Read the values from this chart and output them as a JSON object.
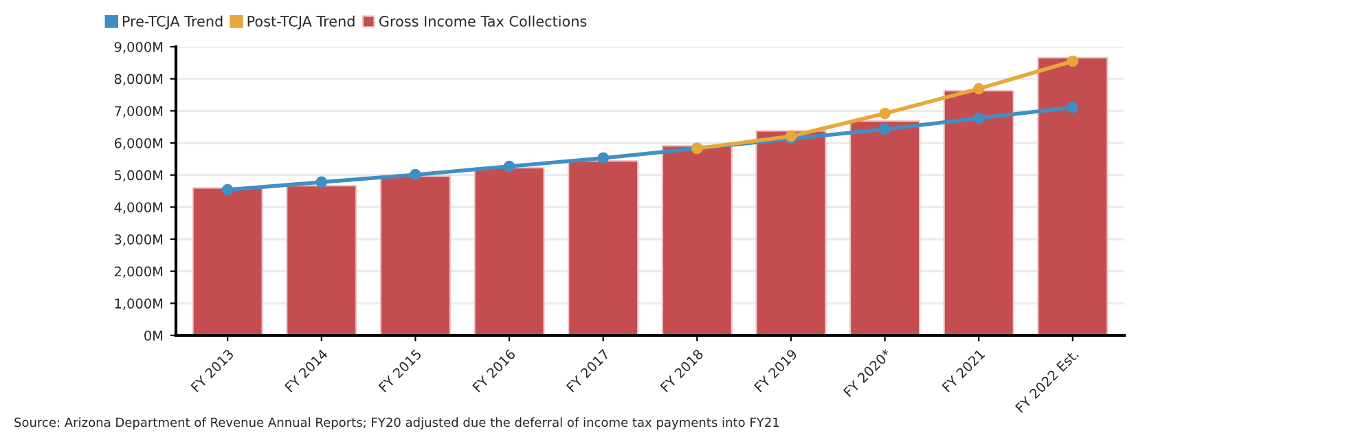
{
  "chart_data": {
    "type": "bar",
    "categories": [
      "FY 2013",
      "FY 2014",
      "FY 2015",
      "FY 2016",
      "FY 2017",
      "FY 2018",
      "FY 2019",
      "FY 2020*",
      "FY 2021",
      "FY 2022 Est."
    ],
    "series": [
      {
        "name": "Pre-TCJA Trend",
        "type": "line",
        "color": "#3f8fc5",
        "values": [
          4540,
          4780,
          5010,
          5270,
          5530,
          5830,
          6130,
          6430,
          6770,
          7110
        ]
      },
      {
        "name": "Post-TCJA Trend",
        "type": "line",
        "color": "#e9a73b",
        "values": [
          null,
          null,
          null,
          null,
          null,
          5830,
          6210,
          6920,
          7690,
          8550
        ]
      },
      {
        "name": "Gross Income Tax Collections",
        "color": "#c44e4f",
        "values": [
          4600,
          4670,
          4970,
          5230,
          5440,
          5910,
          6380,
          6690,
          7630,
          8660
        ]
      }
    ],
    "ylim": [
      0,
      9000
    ],
    "yticks": [
      {
        "value": 0,
        "label": "0M"
      },
      {
        "value": 1000,
        "label": "1,000M"
      },
      {
        "value": 2000,
        "label": "2,000M"
      },
      {
        "value": 3000,
        "label": "3,000M"
      },
      {
        "value": 4000,
        "label": "4,000M"
      },
      {
        "value": 5000,
        "label": "5,000M"
      },
      {
        "value": 6000,
        "label": "6,000M"
      },
      {
        "value": 7000,
        "label": "7,000M"
      },
      {
        "value": 8000,
        "label": "8,000M"
      },
      {
        "value": 9000,
        "label": "9,000M"
      }
    ],
    "grid": "y",
    "legend": "top left",
    "marker": "circle",
    "line_style": "solid",
    "annotations": [
      "Source: Arizona Department of Revenue Annual Reports; FY20 adjusted due the deferral of income tax payments into FY21"
    ]
  }
}
